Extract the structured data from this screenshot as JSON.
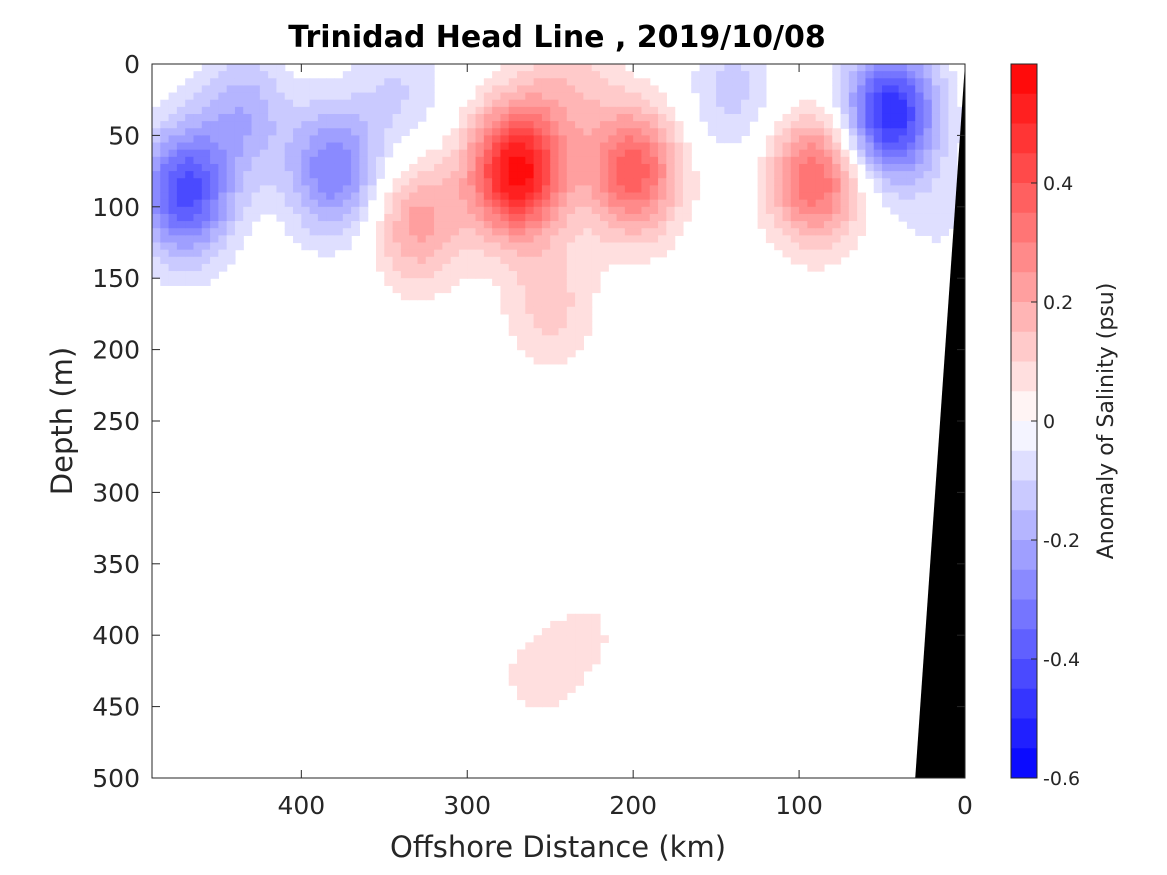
{
  "chart_data": {
    "type": "heatmap",
    "title": "Trinidad Head Line , 2019/10/08",
    "xlabel": "Offshore Distance (km)",
    "ylabel": "Depth (m)",
    "colorbar_label": "Anomaly of Salinity (psu)",
    "xlim": [
      490,
      0
    ],
    "ylim": [
      500,
      0
    ],
    "x_reversed": true,
    "y_reversed": true,
    "x_ticks": [
      400,
      300,
      200,
      100,
      0
    ],
    "x_tick_labels": [
      "400",
      "300",
      "200",
      "100",
      "0"
    ],
    "y_ticks": [
      0,
      50,
      100,
      150,
      200,
      250,
      300,
      350,
      400,
      450,
      500
    ],
    "y_tick_labels": [
      "0",
      "50",
      "100",
      "150",
      "200",
      "250",
      "300",
      "350",
      "400",
      "450",
      "500"
    ],
    "colorbar": {
      "range": [
        -0.6,
        0.6
      ],
      "levels": 24,
      "ticks": [
        0.4,
        0.2,
        0,
        -0.2,
        -0.4,
        -0.6
      ],
      "tick_labels": [
        "0.4",
        "0.2",
        "0",
        "-0.2",
        "-0.4",
        "-0.6"
      ],
      "colormap": "blue-white-red"
    },
    "anomaly_features": [
      {
        "x": 470,
        "depth": 90,
        "value": -0.42
      },
      {
        "x": 435,
        "depth": 35,
        "value": -0.18
      },
      {
        "x": 380,
        "depth": 75,
        "value": -0.3
      },
      {
        "x": 340,
        "depth": 20,
        "value": -0.1
      },
      {
        "x": 270,
        "depth": 75,
        "value": 0.58
      },
      {
        "x": 240,
        "depth": 15,
        "value": 0.12
      },
      {
        "x": 200,
        "depth": 75,
        "value": 0.38
      },
      {
        "x": 330,
        "depth": 110,
        "value": 0.22
      },
      {
        "x": 250,
        "depth": 170,
        "value": 0.12
      },
      {
        "x": 260,
        "depth": 430,
        "value": 0.06
      },
      {
        "x": 225,
        "depth": 400,
        "value": 0.05
      },
      {
        "x": 140,
        "depth": 20,
        "value": -0.12
      },
      {
        "x": 90,
        "depth": 80,
        "value": 0.36
      },
      {
        "x": 45,
        "depth": 35,
        "value": -0.5
      },
      {
        "x": 15,
        "depth": 110,
        "value": -0.05
      }
    ],
    "grid": false,
    "seafloor_mask": true,
    "seafloor_color": "#000000",
    "positive_color": "#ff0000",
    "negative_color": "#0000ff",
    "neutral_color": "#ffffff"
  }
}
